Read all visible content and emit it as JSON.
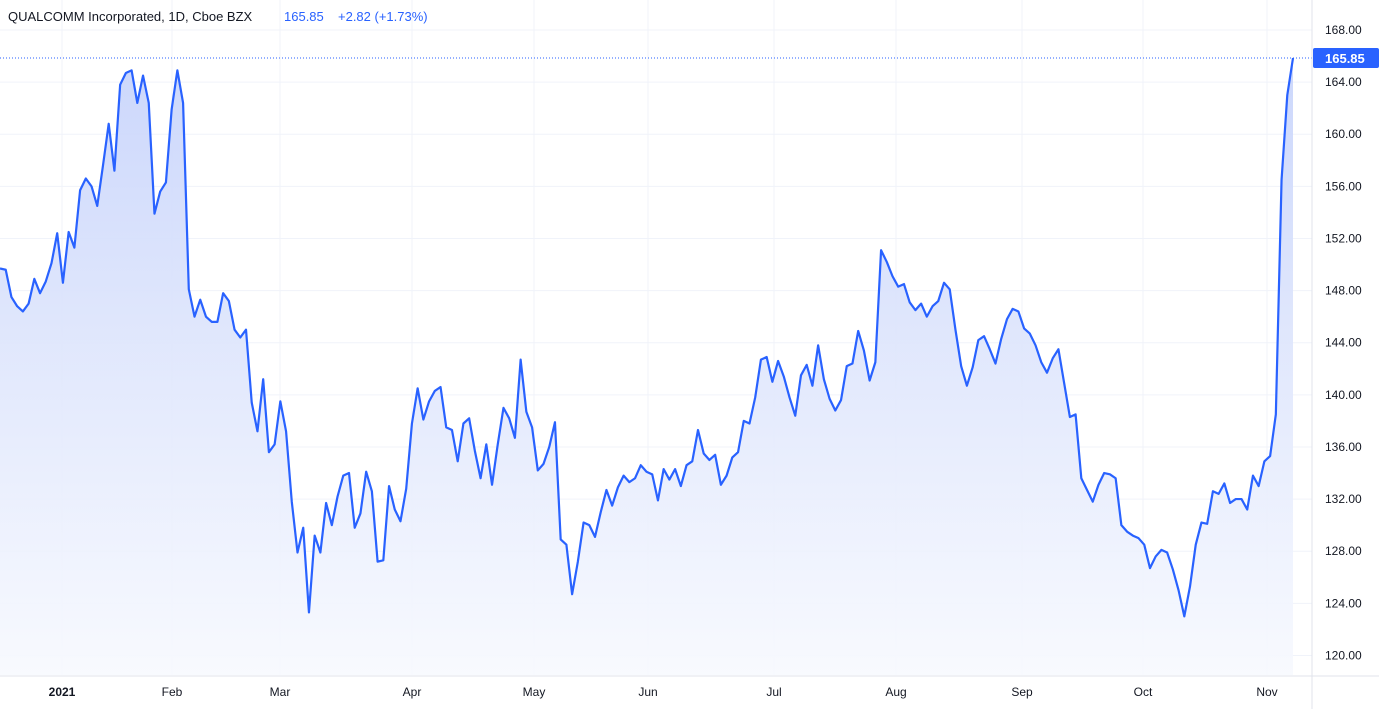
{
  "header": {
    "symbol_title": "QUALCOMM Incorporated, 1D, Cboe BZX",
    "last_price": "165.85",
    "change": "+2.82 (+1.73%)"
  },
  "colors": {
    "line": "#2962ff",
    "fill_top": "#c9d5fb",
    "fill_bottom": "#f7f9fe",
    "grid": "#f0f3fa",
    "axis_text": "#131722",
    "price_tag_bg": "#2962ff",
    "price_tag_text": "#ffffff",
    "header_text": "#131722",
    "header_value": "#2962ff"
  },
  "chart_data": {
    "type": "area",
    "title": "QUALCOMM Incorporated, 1D, Cboe BZX",
    "ylim": [
      118.5,
      170.3
    ],
    "y_ticks": [
      "168.00",
      "164.00",
      "160.00",
      "156.00",
      "152.00",
      "148.00",
      "144.00",
      "140.00",
      "136.00",
      "132.00",
      "128.00",
      "124.00",
      "120.00"
    ],
    "x_ticks": [
      {
        "label": "2021",
        "bold": true
      },
      {
        "label": "Feb"
      },
      {
        "label": "Mar"
      },
      {
        "label": "Apr"
      },
      {
        "label": "May"
      },
      {
        "label": "Jun"
      },
      {
        "label": "Jul"
      },
      {
        "label": "Aug"
      },
      {
        "label": "Sep"
      },
      {
        "label": "Oct"
      },
      {
        "label": "Nov"
      }
    ],
    "last_value": "165.85",
    "grid": true,
    "series": [
      {
        "values": [
          149.7,
          149.6,
          147.5,
          146.8,
          146.4,
          147.0,
          148.9,
          147.8,
          148.7,
          150.1,
          152.4,
          148.6,
          152.5,
          151.3,
          155.7,
          156.6,
          156.0,
          154.5,
          157.6,
          160.8,
          157.2,
          163.8,
          164.7,
          164.9,
          162.4,
          164.5,
          162.4,
          153.9,
          155.6,
          156.3,
          161.9,
          164.9,
          162.4,
          148.1,
          146.0,
          147.3,
          146.0,
          145.6,
          145.6,
          147.8,
          147.2,
          145.0,
          144.4,
          145.0,
          139.4,
          137.2,
          141.2,
          135.6,
          136.2,
          139.5,
          137.2,
          131.8,
          127.9,
          129.8,
          123.3,
          129.2,
          127.9,
          131.7,
          130.0,
          132.2,
          133.8,
          134.0,
          129.8,
          130.9,
          134.1,
          132.6,
          127.2,
          127.3,
          133.0,
          131.2,
          130.3,
          132.8,
          137.8,
          140.5,
          138.1,
          139.5,
          140.3,
          140.6,
          137.5,
          137.3,
          134.9,
          137.8,
          138.2,
          135.7,
          133.6,
          136.2,
          133.1,
          136.2,
          139.0,
          138.2,
          136.7,
          142.7,
          138.7,
          137.5,
          134.2,
          134.7,
          136.0,
          137.9,
          128.9,
          128.5,
          124.7,
          127.2,
          130.2,
          130.0,
          129.1,
          131.0,
          132.7,
          131.5,
          132.9,
          133.8,
          133.3,
          133.6,
          134.6,
          134.1,
          133.9,
          131.9,
          134.3,
          133.5,
          134.3,
          133.0,
          134.6,
          134.9,
          137.3,
          135.5,
          135.0,
          135.4,
          133.1,
          133.8,
          135.2,
          135.6,
          138.0,
          137.8,
          139.8,
          142.7,
          142.9,
          141.0,
          142.6,
          141.4,
          139.8,
          138.4,
          141.5,
          142.3,
          140.7,
          143.8,
          141.2,
          139.7,
          138.8,
          139.6,
          142.2,
          142.4,
          144.9,
          143.4,
          141.1,
          142.5,
          151.1,
          150.2,
          149.1,
          148.3,
          148.5,
          147.1,
          146.5,
          147.0,
          146.0,
          146.8,
          147.2,
          148.6,
          148.1,
          145.0,
          142.2,
          140.7,
          142.1,
          144.2,
          144.5,
          143.5,
          142.4,
          144.3,
          145.8,
          146.6,
          146.4,
          145.1,
          144.7,
          143.8,
          142.5,
          141.7,
          142.8,
          143.5,
          140.9,
          138.3,
          138.5,
          133.6,
          132.7,
          131.8,
          133.1,
          134.0,
          133.9,
          133.6,
          130.0,
          129.5,
          129.2,
          129.0,
          128.5,
          126.7,
          127.6,
          128.1,
          127.9,
          126.6,
          125.0,
          123.0,
          125.3,
          128.5,
          130.2,
          130.1,
          132.6,
          132.4,
          133.2,
          131.7,
          132.0,
          132.0,
          131.2,
          133.8,
          133.0,
          134.9,
          135.3,
          138.5,
          156.5,
          163.0,
          165.85
        ]
      }
    ]
  }
}
